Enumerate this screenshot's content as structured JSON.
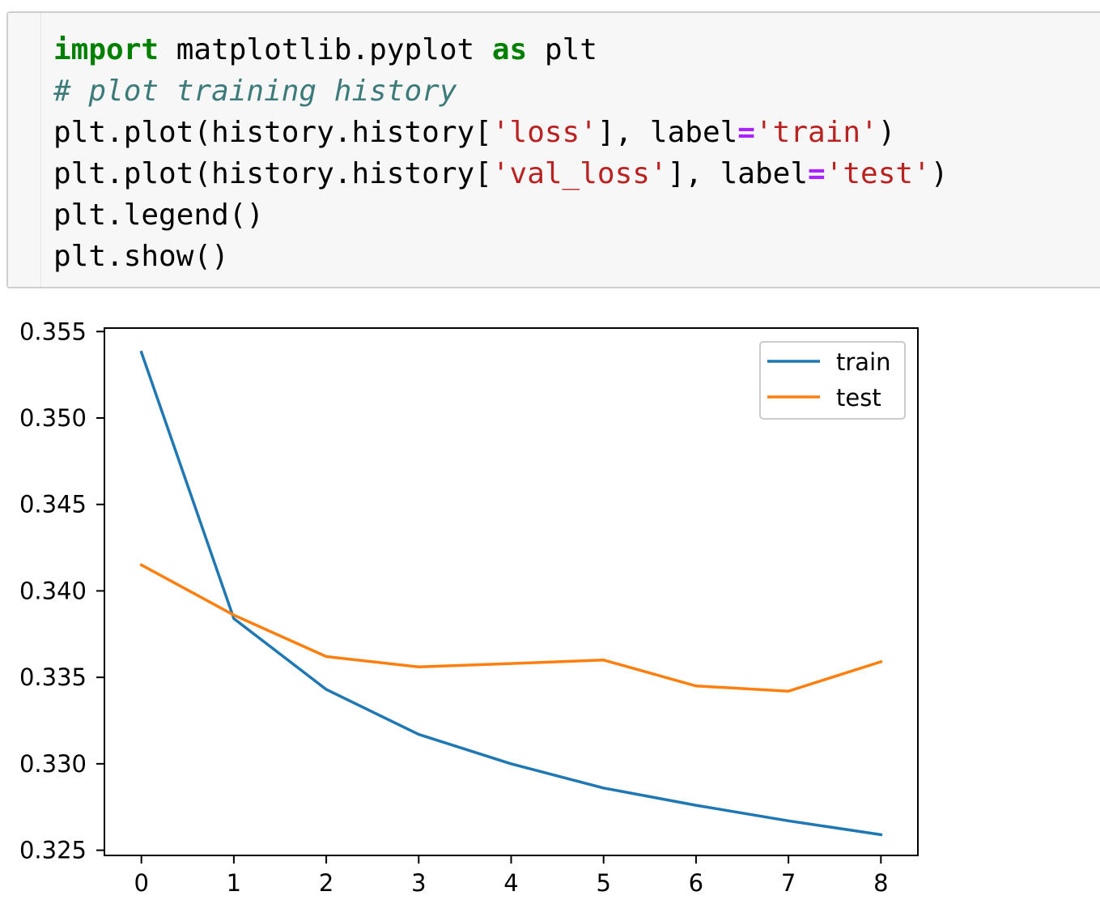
{
  "code_cell": {
    "lines": [
      [
        {
          "t": "import",
          "c": "kw"
        },
        {
          "t": " matplotlib.pyplot ",
          "c": ""
        },
        {
          "t": "as",
          "c": "kw"
        },
        {
          "t": " plt",
          "c": ""
        }
      ],
      [
        {
          "t": "# plot training history",
          "c": "cm"
        }
      ],
      [
        {
          "t": "plt.plot(history.history[",
          "c": ""
        },
        {
          "t": "'loss'",
          "c": "st"
        },
        {
          "t": "], label",
          "c": ""
        },
        {
          "t": "=",
          "c": "op"
        },
        {
          "t": "'train'",
          "c": "st"
        },
        {
          "t": ")",
          "c": ""
        }
      ],
      [
        {
          "t": "plt.plot(history.history[",
          "c": ""
        },
        {
          "t": "'val_loss'",
          "c": "st"
        },
        {
          "t": "], label",
          "c": ""
        },
        {
          "t": "=",
          "c": "op"
        },
        {
          "t": "'test'",
          "c": "st"
        },
        {
          "t": ")",
          "c": ""
        }
      ],
      [
        {
          "t": "plt.legend()",
          "c": ""
        }
      ],
      [
        {
          "t": "plt.show()",
          "c": ""
        }
      ]
    ]
  },
  "chart_data": {
    "type": "line",
    "title": "",
    "xlabel": "",
    "ylabel": "",
    "x": [
      0,
      1,
      2,
      3,
      4,
      5,
      6,
      7,
      8
    ],
    "series": [
      {
        "name": "train",
        "color": "#1f77b4",
        "values": [
          0.3538,
          0.3384,
          0.3343,
          0.3317,
          0.33,
          0.3286,
          0.3276,
          0.3267,
          0.3259
        ]
      },
      {
        "name": "test",
        "color": "#ff7f0e",
        "values": [
          0.3415,
          0.3386,
          0.3362,
          0.3356,
          0.3358,
          0.336,
          0.3345,
          0.3342,
          0.3359
        ]
      }
    ],
    "xlim": [
      -0.4,
      8.4
    ],
    "ylim": [
      0.3247,
      0.3552
    ],
    "xticks": [
      0,
      1,
      2,
      3,
      4,
      5,
      6,
      7,
      8
    ],
    "xtick_labels": [
      "0",
      "1",
      "2",
      "3",
      "4",
      "5",
      "6",
      "7",
      "8"
    ],
    "yticks": [
      0.325,
      0.33,
      0.335,
      0.34,
      0.345,
      0.35,
      0.355
    ],
    "ytick_labels": [
      "0.325",
      "0.330",
      "0.335",
      "0.340",
      "0.345",
      "0.350",
      "0.355"
    ],
    "legend": "top-right",
    "grid": false
  }
}
